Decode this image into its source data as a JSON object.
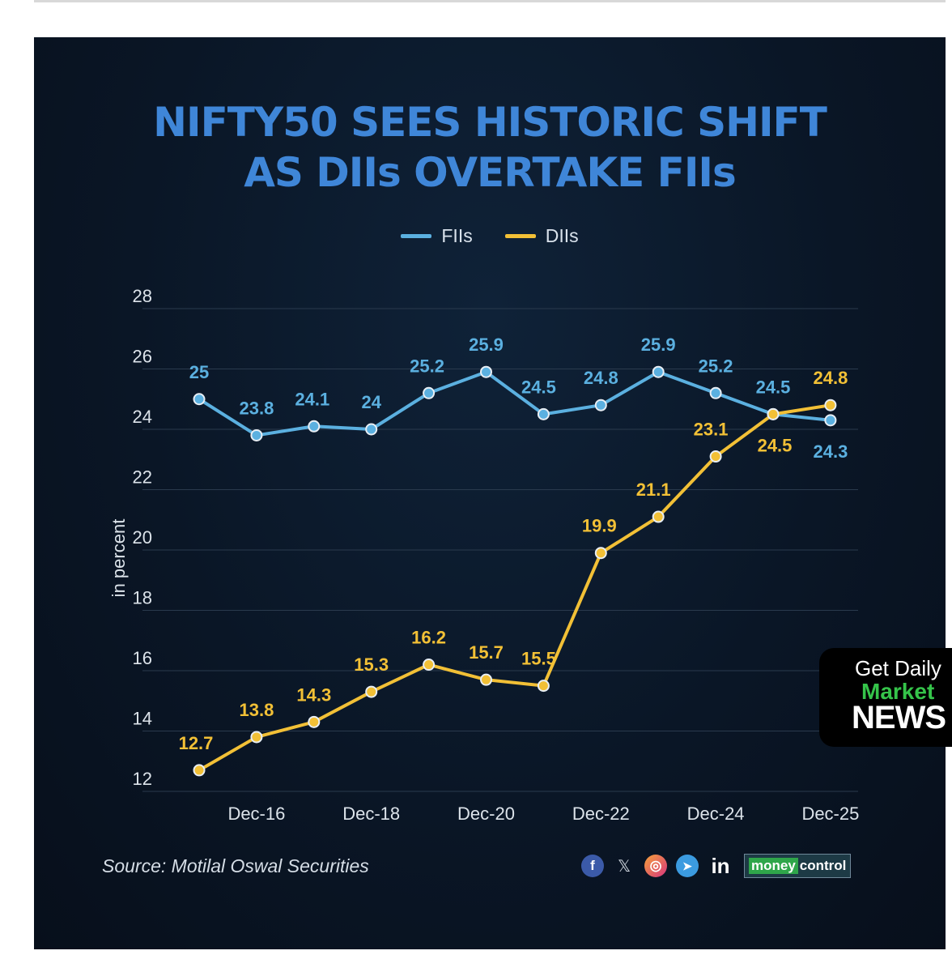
{
  "header": {
    "title_line1": "NIFTY50 SEES HISTORIC SHIFT",
    "title_line2": "AS DIIs OVERTAKE FIIs"
  },
  "legend": {
    "fii_label": "FIIs",
    "dii_label": "DIIs"
  },
  "footer": {
    "source": "Source: Motilal Oswal Securities",
    "social_icons": [
      "facebook-icon",
      "x-icon",
      "instagram-icon",
      "telegram-icon",
      "linkedin-icon"
    ],
    "social_glyphs": [
      "f",
      "𝕏",
      "◎",
      "➤",
      "in"
    ],
    "brand_part1": "money",
    "brand_part2": "control"
  },
  "promo": {
    "line1": "Get Daily",
    "line2": "Market",
    "line3": "NEWS"
  },
  "colors": {
    "fii": "#5bb0e0",
    "dii": "#f2c036",
    "title": "#3f86d8",
    "grid": "#2a3a4d",
    "axis_text": "#dce3ea"
  },
  "chart_data": {
    "type": "line",
    "title": "NIFTY50 SEES HISTORIC SHIFT AS DIIs OVERTAKE FIIs",
    "ylabel": "in percent",
    "xlabel": "",
    "ylim": [
      12,
      28
    ],
    "yticks": [
      12,
      14,
      16,
      18,
      20,
      22,
      24,
      26,
      28
    ],
    "grid": true,
    "legend_position": "top-center",
    "x_tick_labels": [
      {
        "index": 1,
        "label": "Dec-16"
      },
      {
        "index": 3,
        "label": "Dec-18"
      },
      {
        "index": 5,
        "label": "Dec-20"
      },
      {
        "index": 7,
        "label": "Dec-22"
      },
      {
        "index": 9,
        "label": "Dec-24"
      },
      {
        "index": 11,
        "label": "Dec-25"
      }
    ],
    "series": [
      {
        "name": "FIIs",
        "values": [
          25,
          23.8,
          24.1,
          24,
          25.2,
          25.9,
          24.5,
          24.8,
          25.9,
          25.2,
          24.5,
          24.3
        ],
        "labels": [
          "25",
          "23.8",
          "24.1",
          "24",
          "25.2",
          "25.9",
          "24.5",
          "24.8",
          "25.9",
          "25.2",
          "24.5",
          "24.3"
        ]
      },
      {
        "name": "DIIs",
        "values": [
          12.7,
          13.8,
          14.3,
          15.3,
          16.2,
          15.7,
          15.5,
          19.9,
          21.1,
          23.1,
          24.5,
          24.8
        ],
        "labels": [
          "12.7",
          "13.8",
          "14.3",
          "15.3",
          "16.2",
          "15.7",
          "15.5",
          "19.9",
          "21.1",
          "23.1",
          "24.5",
          "24.8"
        ]
      }
    ]
  }
}
